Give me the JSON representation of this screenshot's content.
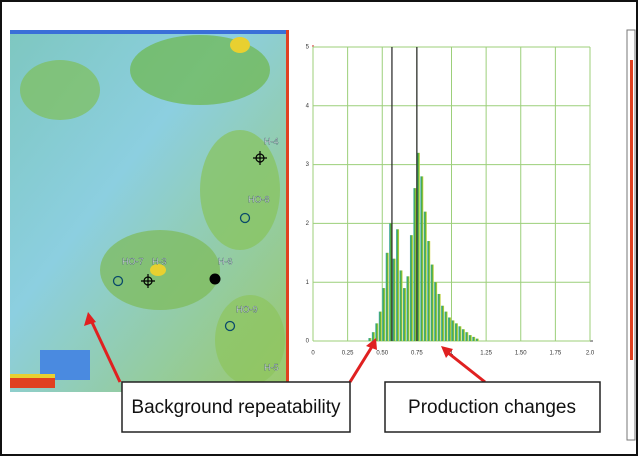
{
  "chart_data": {
    "type": "histogram",
    "bins": [
      0.4,
      0.425,
      0.45,
      0.475,
      0.5,
      0.525,
      0.55,
      0.575,
      0.6,
      0.625,
      0.65,
      0.675,
      0.7,
      0.725,
      0.75,
      0.775,
      0.8,
      0.825,
      0.85,
      0.875,
      0.9,
      0.925,
      0.95,
      0.975,
      1.0,
      1.025,
      1.05,
      1.075,
      1.1,
      1.125,
      1.15,
      1.175,
      1.2
    ],
    "counts": [
      0.05,
      0.15,
      0.3,
      0.5,
      0.9,
      1.5,
      2.0,
      1.4,
      1.9,
      1.2,
      0.9,
      1.1,
      1.8,
      2.6,
      3.2,
      2.8,
      2.2,
      1.7,
      1.3,
      1.0,
      0.8,
      0.6,
      0.5,
      0.4,
      0.35,
      0.3,
      0.25,
      0.2,
      0.15,
      0.1,
      0.07,
      0.04
    ],
    "color": "#6cbf3a",
    "xlim": [
      0,
      2
    ],
    "ylim": [
      0,
      5
    ],
    "xticks": [
      0,
      0.25,
      {
        "value": 0.5,
        "label": "0.50"
      },
      0.75,
      1,
      1.25,
      {
        "value": 1.5,
        "label": "1.50"
      },
      1.75,
      {
        "value": 2,
        "label": "2.0"
      }
    ],
    "yticks": [
      0,
      1,
      2,
      3,
      4,
      5
    ],
    "grid": true,
    "vlines": [
      0.57,
      0.75
    ],
    "annotations": [
      "Background repeatability",
      "Production changes"
    ]
  },
  "map": {
    "well_labels": [
      "H-4",
      "HO-8",
      "HO-7",
      "H-3",
      "H-6",
      "HO-9",
      "H-5"
    ]
  }
}
